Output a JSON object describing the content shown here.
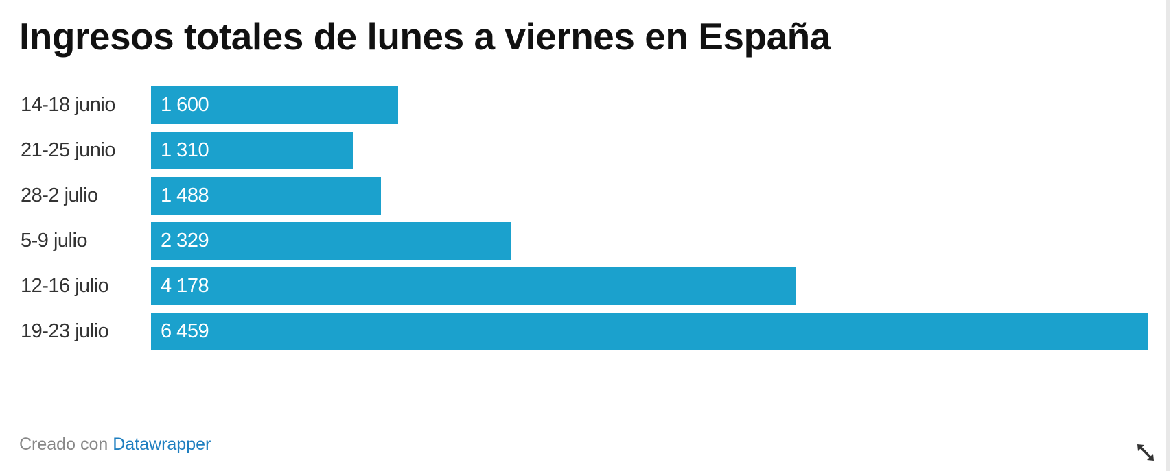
{
  "title": "Ingresos totales de lunes a viernes en España",
  "footer": {
    "prefix": "Creado con",
    "link_label": "Datawrapper"
  },
  "colors": {
    "bar": "#1ba1cd",
    "title": "#111111",
    "link": "#1f7fc0"
  },
  "bars": [
    {
      "label": "14-18 junio",
      "value": 1600,
      "display": "1 600"
    },
    {
      "label": "21-25 junio",
      "value": 1310,
      "display": "1 310"
    },
    {
      "label": "28-2 julio",
      "value": 1488,
      "display": "1 488"
    },
    {
      "label": "5-9 julio",
      "value": 2329,
      "display": "2 329"
    },
    {
      "label": "12-16 julio",
      "value": 4178,
      "display": "4 178"
    },
    {
      "label": "19-23 julio",
      "value": 6459,
      "display": "6 459"
    }
  ],
  "chart_data": {
    "type": "bar",
    "orientation": "horizontal",
    "title": "Ingresos totales de lunes a viernes en España",
    "categories": [
      "14-18 junio",
      "21-25 junio",
      "28-2 julio",
      "5-9 julio",
      "12-16 julio",
      "19-23 julio"
    ],
    "values": [
      1600,
      1310,
      1488,
      2329,
      4178,
      6459
    ],
    "xlabel": "",
    "ylabel": "",
    "xlim": [
      0,
      6459
    ],
    "grid": false,
    "legend": "none",
    "data_labels": "inside-left",
    "source_note": "Creado con Datawrapper"
  }
}
